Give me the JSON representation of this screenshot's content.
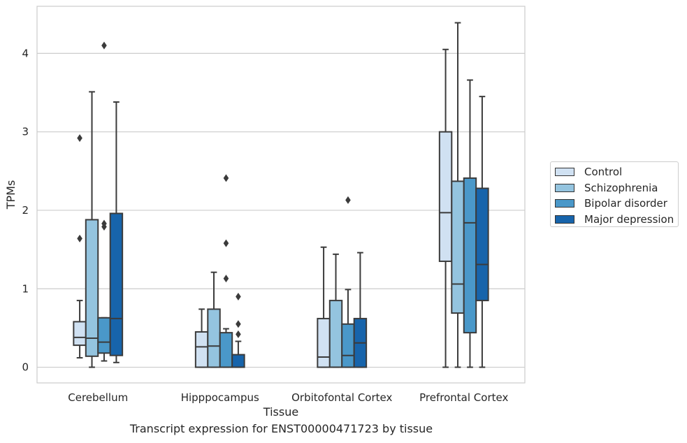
{
  "caption": "Transcript expression for ENST00000471723 by tissue",
  "chart_data": {
    "type": "boxplot",
    "xlabel": "Tissue",
    "ylabel": "TPMs",
    "ylim": [
      -0.2,
      4.6
    ],
    "yticks": [
      0,
      1,
      2,
      3,
      4
    ],
    "grid": "horizontal",
    "legend_position": "right",
    "categories": [
      "Cerebellum",
      "Hipppocampus",
      "Orbitofontal Cortex",
      "Prefrontal Cortex"
    ],
    "series": [
      {
        "name": "Control",
        "color": "#d0e1f2",
        "boxes": [
          {
            "whisker_low": 0.12,
            "q1": 0.28,
            "median": 0.38,
            "q3": 0.58,
            "whisker_high": 0.85,
            "outliers": [
              1.64,
              2.92
            ]
          },
          {
            "whisker_low": 0.0,
            "q1": 0.0,
            "median": 0.26,
            "q3": 0.45,
            "whisker_high": 0.74,
            "outliers": []
          },
          {
            "whisker_low": 0.0,
            "q1": 0.0,
            "median": 0.13,
            "q3": 0.62,
            "whisker_high": 1.53,
            "outliers": []
          },
          {
            "whisker_low": 0.0,
            "q1": 1.35,
            "median": 1.97,
            "q3": 3.0,
            "whisker_high": 4.05,
            "outliers": []
          }
        ]
      },
      {
        "name": "Schizophrenia",
        "color": "#94c4df",
        "boxes": [
          {
            "whisker_low": 0.0,
            "q1": 0.14,
            "median": 0.37,
            "q3": 1.88,
            "whisker_high": 3.51,
            "outliers": []
          },
          {
            "whisker_low": 0.0,
            "q1": 0.0,
            "median": 0.27,
            "q3": 0.74,
            "whisker_high": 1.21,
            "outliers": []
          },
          {
            "whisker_low": 0.0,
            "q1": 0.0,
            "median": 0.0,
            "q3": 0.85,
            "whisker_high": 1.44,
            "outliers": []
          },
          {
            "whisker_low": 0.0,
            "q1": 0.69,
            "median": 1.06,
            "q3": 2.37,
            "whisker_high": 4.39,
            "outliers": []
          }
        ]
      },
      {
        "name": "Bipolar disorder",
        "color": "#4a98c9",
        "boxes": [
          {
            "whisker_low": 0.08,
            "q1": 0.18,
            "median": 0.32,
            "q3": 0.63,
            "whisker_high": 0.63,
            "outliers": [
              1.79,
              1.83,
              4.1
            ]
          },
          {
            "whisker_low": 0.0,
            "q1": 0.0,
            "median": 0.0,
            "q3": 0.44,
            "whisker_high": 0.49,
            "outliers": [
              1.13,
              1.58,
              2.41
            ]
          },
          {
            "whisker_low": 0.0,
            "q1": 0.0,
            "median": 0.15,
            "q3": 0.55,
            "whisker_high": 0.99,
            "outliers": [
              2.13
            ]
          },
          {
            "whisker_low": 0.0,
            "q1": 0.44,
            "median": 1.84,
            "q3": 2.41,
            "whisker_high": 3.66,
            "outliers": []
          }
        ]
      },
      {
        "name": "Major depression",
        "color": "#1764ab",
        "boxes": [
          {
            "whisker_low": 0.06,
            "q1": 0.15,
            "median": 0.62,
            "q3": 1.96,
            "whisker_high": 3.38,
            "outliers": []
          },
          {
            "whisker_low": 0.0,
            "q1": 0.0,
            "median": 0.0,
            "q3": 0.16,
            "whisker_high": 0.33,
            "outliers": [
              0.42,
              0.55,
              0.9
            ]
          },
          {
            "whisker_low": 0.0,
            "q1": 0.0,
            "median": 0.31,
            "q3": 0.62,
            "whisker_high": 1.46,
            "outliers": []
          },
          {
            "whisker_low": 0.0,
            "q1": 0.85,
            "median": 1.31,
            "q3": 2.28,
            "whisker_high": 3.45,
            "outliers": []
          }
        ]
      }
    ]
  }
}
